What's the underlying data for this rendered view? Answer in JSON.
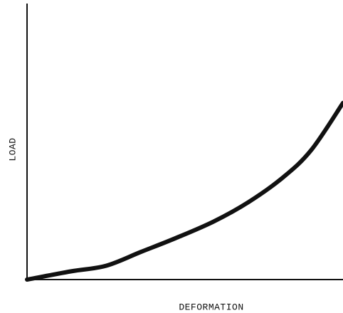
{
  "chart_data": {
    "type": "line",
    "x_label": "DEFORMATION",
    "y_label": "LOAD",
    "x": [
      0,
      14,
      25,
      36,
      47,
      59,
      70,
      81,
      90,
      100
    ],
    "series": [
      {
        "color": "#111111",
        "values": [
          0,
          3,
          5,
          10,
          15,
          21,
          28,
          37,
          47,
          64
        ]
      }
    ],
    "xlim": [
      0,
      100
    ],
    "ylim": [
      0,
      100
    ]
  }
}
